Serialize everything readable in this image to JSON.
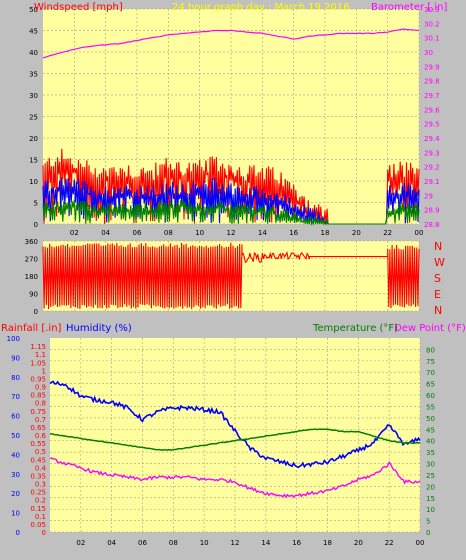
{
  "colors": {
    "background": "#c0c0c0",
    "plot_bg": "#ffffa0",
    "wind_speed": "#ff0000",
    "wind_mid": "#0000ff",
    "wind_low": "#008000",
    "barometer": "#ff00ff",
    "direction": "#ff0000",
    "rainfall": "#ff0000",
    "humidity": "#0000ff",
    "temperature": "#008000",
    "dewpoint": "#ff00ff"
  },
  "top_panel": {
    "left_label": "Windspeed [mph]",
    "title": "24 hour graph day : March 19 2016",
    "right_label": "Barometer [.in]"
  },
  "middle_panel": {
    "right_labels": [
      "N",
      "W",
      "S",
      "E",
      "N"
    ]
  },
  "bottom_panel": {
    "rain_label": "Rainfall [.in]",
    "humidity_label": "Humidity (%)",
    "temp_label": "Temperature (°F)",
    "dew_label": "Dew Point (°F)"
  },
  "chart_data": [
    {
      "type": "line",
      "name": "wind-barometer",
      "x_ticks": [
        "02",
        "04",
        "06",
        "08",
        "10",
        "12",
        "14",
        "16",
        "18",
        "20",
        "22",
        "00"
      ],
      "x_range_hours": [
        0,
        24
      ],
      "y_left": {
        "label": "Windspeed [mph]",
        "range": [
          0,
          50
        ],
        "ticks": [
          0,
          5,
          10,
          15,
          20,
          25,
          30,
          35,
          40,
          45,
          50
        ]
      },
      "y_right": {
        "label": "Barometer [.in]",
        "range": [
          28.8,
          30.3
        ],
        "ticks": [
          "28.8",
          "28.9",
          "29",
          "29.1",
          "29.2",
          "29.3",
          "29.4",
          "29.5",
          "29.6",
          "29.7",
          "29.8",
          "29.9",
          "30",
          "30.1",
          "30.2",
          "30.3"
        ]
      },
      "series": [
        {
          "name": "Barometer",
          "axis": "right",
          "x": [
            0,
            1,
            2,
            3,
            4,
            5,
            6,
            7,
            8,
            9,
            10,
            11,
            12,
            13,
            14,
            15,
            16,
            17,
            18,
            19,
            20,
            21,
            22,
            23,
            24
          ],
          "y": [
            29.96,
            29.99,
            30.02,
            30.04,
            30.05,
            30.06,
            30.08,
            30.1,
            30.12,
            30.13,
            30.14,
            30.15,
            30.15,
            30.14,
            30.13,
            30.11,
            30.09,
            30.11,
            30.12,
            30.13,
            30.13,
            30.13,
            30.14,
            30.16,
            30.15
          ]
        },
        {
          "name": "Wind gust",
          "axis": "left",
          "x": [
            0,
            1,
            2,
            3,
            4,
            5,
            6,
            7,
            8,
            9,
            10,
            11,
            12,
            13,
            14,
            15,
            16,
            17,
            18,
            19,
            20,
            21,
            22,
            23,
            24
          ],
          "y": [
            11,
            14,
            12,
            11,
            10,
            11,
            10,
            10,
            12,
            11,
            11,
            12,
            11,
            10,
            10,
            9,
            6,
            3,
            0,
            0,
            0,
            0,
            10,
            11,
            10
          ]
        },
        {
          "name": "Wind average",
          "axis": "left",
          "x": [
            0,
            1,
            2,
            3,
            4,
            5,
            6,
            7,
            8,
            9,
            10,
            11,
            12,
            13,
            14,
            15,
            16,
            17,
            18,
            19,
            20,
            21,
            22,
            23,
            24
          ],
          "y": [
            7,
            8,
            8,
            7,
            6,
            7,
            6,
            6,
            7,
            7,
            7,
            8,
            7,
            6,
            6,
            5,
            3,
            1,
            0,
            0,
            0,
            0,
            6,
            7,
            6
          ]
        },
        {
          "name": "Wind low",
          "axis": "left",
          "x": [
            0,
            1,
            2,
            3,
            4,
            5,
            6,
            7,
            8,
            9,
            10,
            11,
            12,
            13,
            14,
            15,
            16,
            17,
            18,
            19,
            20,
            21,
            22,
            23,
            24
          ],
          "y": [
            3,
            4,
            4,
            3,
            3,
            3,
            3,
            3,
            4,
            4,
            3,
            4,
            3,
            3,
            3,
            2,
            1,
            0,
            0,
            0,
            0,
            0,
            3,
            3,
            3
          ]
        }
      ]
    },
    {
      "type": "line",
      "name": "wind-direction",
      "y_left": {
        "range": [
          0,
          360
        ],
        "ticks": [
          0,
          90,
          180,
          270,
          360
        ]
      },
      "segments": [
        {
          "from_hour": 0.0,
          "to_hour": 12.7,
          "pattern": "oscillating",
          "low": 10,
          "high": 350
        },
        {
          "from_hour": 12.7,
          "to_hour": 14.0,
          "pattern": "band",
          "low": 250,
          "high": 300
        },
        {
          "from_hour": 14.0,
          "to_hour": 17.0,
          "pattern": "band",
          "low": 265,
          "high": 300
        },
        {
          "from_hour": 17.0,
          "to_hour": 22.0,
          "pattern": "flat",
          "value": 280
        },
        {
          "from_hour": 22.0,
          "to_hour": 24.0,
          "pattern": "oscillating",
          "low": 10,
          "high": 340
        }
      ]
    },
    {
      "type": "line",
      "name": "rain-humidity-temperature",
      "x_ticks": [
        "02",
        "04",
        "06",
        "08",
        "10",
        "12",
        "14",
        "16",
        "18",
        "20",
        "22",
        "00"
      ],
      "y_left_rain": {
        "label": "Rainfall [.in]",
        "range": [
          0,
          1.2
        ],
        "ticks": [
          "0",
          "0.05",
          "0.1",
          "0.15",
          "0.2",
          "0.25",
          "0.3",
          "0.35",
          "0.4",
          "0.45",
          "0.5",
          "0.55",
          "0.6",
          "0.65",
          "0.7",
          "0.75",
          "0.8",
          "0.85",
          "0.9",
          "0.95",
          "1",
          "1.05",
          "1.1",
          "1.15"
        ]
      },
      "y_left_humidity": {
        "label": "Humidity (%)",
        "range": [
          0,
          100
        ],
        "ticks": [
          0,
          10,
          20,
          30,
          40,
          50,
          60,
          70,
          80,
          90,
          100
        ]
      },
      "y_right": {
        "label": "Temperature (°F)",
        "range": [
          0,
          85
        ],
        "ticks": [
          0,
          5,
          10,
          15,
          20,
          25,
          30,
          35,
          40,
          45,
          50,
          55,
          60,
          65,
          70,
          75,
          80
        ]
      },
      "series": [
        {
          "name": "Humidity",
          "axis": "humidity",
          "x": [
            0,
            1,
            2,
            3,
            4,
            5,
            6,
            7,
            8,
            9,
            10,
            11,
            12,
            13,
            14,
            15,
            16,
            17,
            18,
            19,
            20,
            21,
            22,
            23,
            24
          ],
          "y": [
            77,
            76,
            70,
            68,
            67,
            64,
            58,
            62,
            64,
            64,
            63,
            62,
            52,
            43,
            38,
            36,
            34,
            35,
            36,
            39,
            42,
            46,
            55,
            45,
            48
          ]
        },
        {
          "name": "Temperature",
          "axis": "right",
          "x": [
            0,
            1,
            2,
            3,
            4,
            5,
            6,
            7,
            8,
            9,
            10,
            11,
            12,
            13,
            14,
            15,
            16,
            17,
            18,
            19,
            20,
            21,
            22,
            23,
            24
          ],
          "y": [
            43,
            42,
            41,
            40,
            39,
            38,
            37,
            36,
            36,
            37,
            38,
            39,
            40,
            41,
            42,
            43,
            44,
            45,
            45,
            44,
            44,
            42,
            40,
            39,
            39
          ]
        },
        {
          "name": "Dew Point",
          "axis": "right",
          "x": [
            0,
            1,
            2,
            3,
            4,
            5,
            6,
            7,
            8,
            9,
            10,
            11,
            12,
            13,
            14,
            15,
            16,
            17,
            18,
            19,
            20,
            21,
            22,
            23,
            24
          ],
          "y": [
            32,
            30,
            28,
            26,
            25,
            24,
            23,
            24,
            24,
            24,
            23,
            23,
            22,
            19,
            17,
            16,
            16,
            17,
            18,
            20,
            23,
            25,
            30,
            22,
            22
          ]
        }
      ]
    }
  ]
}
